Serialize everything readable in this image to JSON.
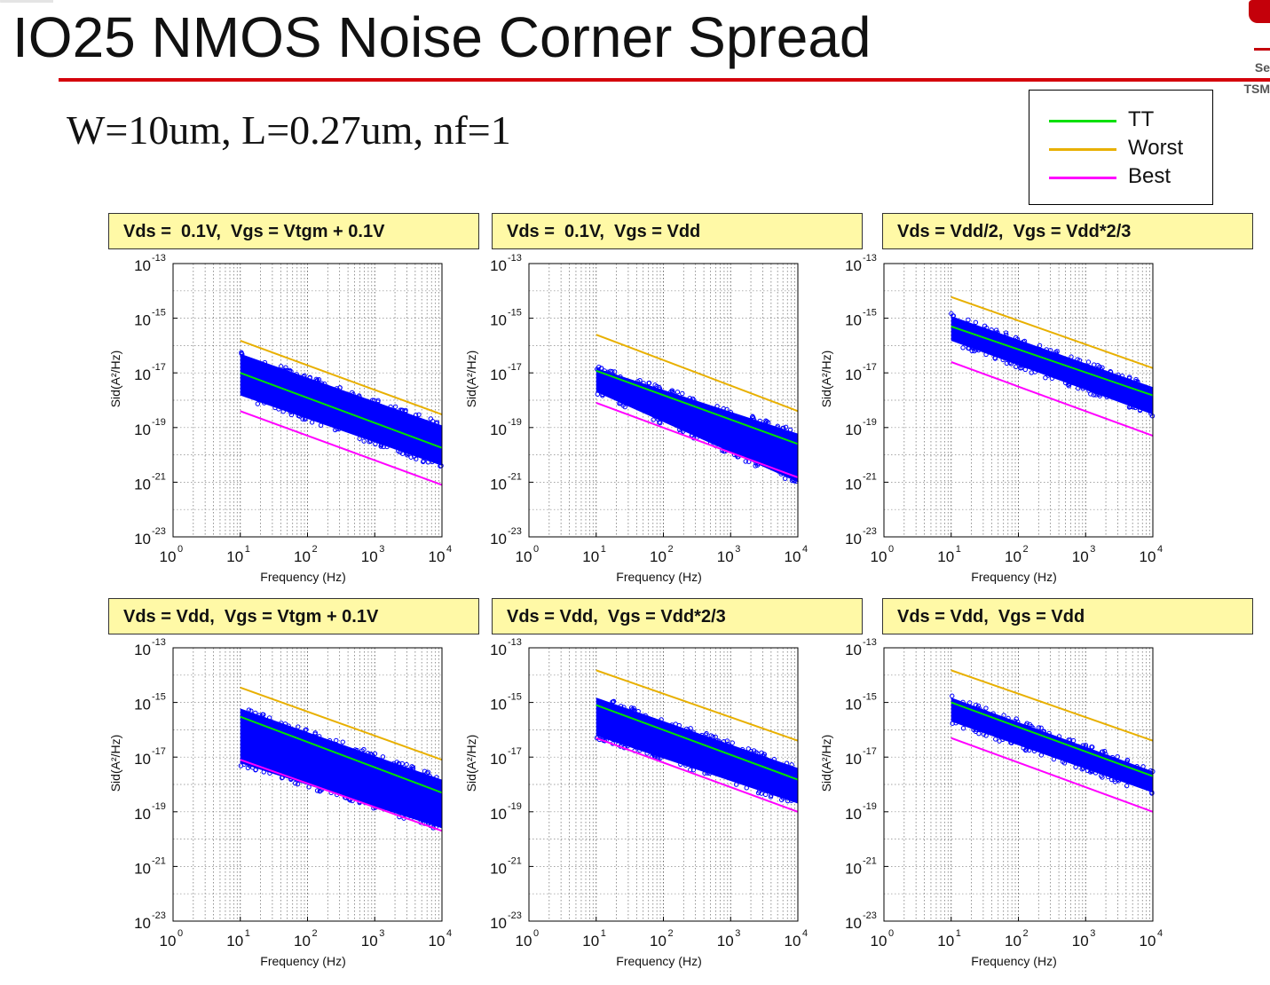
{
  "slide": {
    "title": "IO25 NMOS Noise Corner Spread",
    "subtitle": "W=10um, L=0.27um, nf=1",
    "logo_text_line1": "Se",
    "logo_text_line2": "TSM"
  },
  "legend": {
    "items": [
      {
        "label": "TT",
        "color": "#00e000"
      },
      {
        "label": "Worst",
        "color": "#e8b000"
      },
      {
        "label": "Best",
        "color": "#ff00ff"
      }
    ]
  },
  "colors": {
    "scatter": "#0000ff",
    "header_bg": "#fff9a6",
    "title_rule": "#d4000b"
  },
  "chart_data": [
    {
      "type": "scatter",
      "title": "Vds =  0.1V,  Vgs = Vtgm + 0.1V",
      "xlabel": "Frequency (Hz)",
      "ylabel": "Sid(A²/Hz)",
      "xscale": "log",
      "yscale": "log",
      "xlim": [
        1,
        10000
      ],
      "ylim": [
        1e-23,
        1e-13
      ],
      "xticks": [
        "10^0",
        "10^1",
        "10^2",
        "10^3",
        "10^4"
      ],
      "yticks": [
        "10^-13",
        "10^-15",
        "10^-17",
        "10^-19",
        "10^-21",
        "10^-23"
      ],
      "grid": true,
      "series": [
        {
          "name": "TT",
          "x": [
            10,
            10000
          ],
          "y": [
            1e-17,
            1.8e-20
          ]
        },
        {
          "name": "Worst",
          "x": [
            10,
            10000
          ],
          "y": [
            1.5e-16,
            3e-19
          ]
        },
        {
          "name": "Best",
          "x": [
            10,
            10000
          ],
          "y": [
            4e-19,
            8e-22
          ]
        }
      ],
      "scatter_band": {
        "x": [
          10,
          10000
        ],
        "y_top": [
          5e-17,
          1.2e-19
        ],
        "y_bottom": [
          1.5e-18,
          4e-21
        ]
      }
    },
    {
      "type": "scatter",
      "title": "Vds =  0.1V,  Vgs = Vdd",
      "xlabel": "Frequency (Hz)",
      "ylabel": "Sid(A²/Hz)",
      "xscale": "log",
      "yscale": "log",
      "xlim": [
        1,
        10000
      ],
      "ylim": [
        1e-23,
        1e-13
      ],
      "xticks": [
        "10^0",
        "10^1",
        "10^2",
        "10^3",
        "10^4"
      ],
      "yticks": [
        "10^-13",
        "10^-15",
        "10^-17",
        "10^-19",
        "10^-21",
        "10^-23"
      ],
      "grid": true,
      "series": [
        {
          "name": "TT",
          "x": [
            10,
            10000
          ],
          "y": [
            1.2e-17,
            2.5e-20
          ]
        },
        {
          "name": "Worst",
          "x": [
            10,
            10000
          ],
          "y": [
            2.5e-16,
            4e-19
          ]
        },
        {
          "name": "Best",
          "x": [
            10,
            10000
          ],
          "y": [
            8e-19,
            1.5e-21
          ]
        }
      ],
      "scatter_band": {
        "x": [
          10,
          10000
        ],
        "y_top": [
          1.5e-17,
          6e-20
        ],
        "y_bottom": [
          2e-18,
          1e-21
        ]
      }
    },
    {
      "type": "scatter",
      "title": "Vds = Vdd/2,  Vgs = Vdd*2/3",
      "xlabel": "Frequency (Hz)",
      "ylabel": "Sid(A²/Hz)",
      "xscale": "log",
      "yscale": "log",
      "xlim": [
        1,
        10000
      ],
      "ylim": [
        1e-23,
        1e-13
      ],
      "xticks": [
        "10^0",
        "10^1",
        "10^2",
        "10^3",
        "10^4"
      ],
      "yticks": [
        "10^-13",
        "10^-15",
        "10^-17",
        "10^-19",
        "10^-21",
        "10^-23"
      ],
      "grid": true,
      "series": [
        {
          "name": "TT",
          "x": [
            10,
            10000
          ],
          "y": [
            5e-16,
            1.5e-18
          ]
        },
        {
          "name": "Worst",
          "x": [
            10,
            10000
          ],
          "y": [
            6e-15,
            1.5e-17
          ]
        },
        {
          "name": "Best",
          "x": [
            10,
            10000
          ],
          "y": [
            2.5e-17,
            5e-20
          ]
        }
      ],
      "scatter_band": {
        "x": [
          10,
          10000
        ],
        "y_top": [
          1.2e-15,
          3e-18
        ],
        "y_bottom": [
          1.5e-16,
          3e-19
        ]
      }
    },
    {
      "type": "scatter",
      "title": "Vds = Vdd,  Vgs = Vtgm + 0.1V",
      "xlabel": "Frequency (Hz)",
      "ylabel": "Sid(A²/Hz)",
      "xscale": "log",
      "yscale": "log",
      "xlim": [
        1,
        10000
      ],
      "ylim": [
        1e-23,
        1e-13
      ],
      "xticks": [
        "10^0",
        "10^1",
        "10^2",
        "10^3",
        "10^4"
      ],
      "yticks": [
        "10^-13",
        "10^-15",
        "10^-17",
        "10^-19",
        "10^-21",
        "10^-23"
      ],
      "grid": true,
      "series": [
        {
          "name": "TT",
          "x": [
            10,
            10000
          ],
          "y": [
            3e-16,
            5e-19
          ]
        },
        {
          "name": "Worst",
          "x": [
            10,
            10000
          ],
          "y": [
            3.5e-15,
            8e-18
          ]
        },
        {
          "name": "Best",
          "x": [
            10,
            10000
          ],
          "y": [
            8e-18,
            2e-20
          ]
        }
      ],
      "scatter_band": {
        "x": [
          10,
          10000
        ],
        "y_top": [
          6e-16,
          1.5e-18
        ],
        "y_bottom": [
          6e-18,
          2.5e-20
        ]
      }
    },
    {
      "type": "scatter",
      "title": "Vds = Vdd,  Vgs = Vdd*2/3",
      "xlabel": "Frequency (Hz)",
      "ylabel": "Sid(A²/Hz)",
      "xscale": "log",
      "yscale": "log",
      "xlim": [
        1,
        10000
      ],
      "ylim": [
        1e-23,
        1e-13
      ],
      "xticks": [
        "10^0",
        "10^1",
        "10^2",
        "10^3",
        "10^4"
      ],
      "yticks": [
        "10^-13",
        "10^-15",
        "10^-17",
        "10^-19",
        "10^-21",
        "10^-23"
      ],
      "grid": true,
      "series": [
        {
          "name": "TT",
          "x": [
            10,
            10000
          ],
          "y": [
            8e-16,
            1.5e-18
          ]
        },
        {
          "name": "Worst",
          "x": [
            10,
            10000
          ],
          "y": [
            1.5e-14,
            4e-17
          ]
        },
        {
          "name": "Best",
          "x": [
            10,
            10000
          ],
          "y": [
            5e-17,
            1e-19
          ]
        }
      ],
      "scatter_band": {
        "x": [
          10,
          10000
        ],
        "y_top": [
          1.5e-15,
          4e-18
        ],
        "y_bottom": [
          6e-17,
          2e-19
        ]
      }
    },
    {
      "type": "scatter",
      "title": "Vds = Vdd,  Vgs = Vdd",
      "xlabel": "Frequency (Hz)",
      "ylabel": "Sid(A²/Hz)",
      "xscale": "log",
      "yscale": "log",
      "xlim": [
        1,
        10000
      ],
      "ylim": [
        1e-23,
        1e-13
      ],
      "xticks": [
        "10^0",
        "10^1",
        "10^2",
        "10^3",
        "10^4"
      ],
      "yticks": [
        "10^-13",
        "10^-15",
        "10^-17",
        "10^-19",
        "10^-21",
        "10^-23"
      ],
      "grid": true,
      "series": [
        {
          "name": "TT",
          "x": [
            10,
            10000
          ],
          "y": [
            1e-15,
            2e-18
          ]
        },
        {
          "name": "Worst",
          "x": [
            10,
            10000
          ],
          "y": [
            1.5e-14,
            4e-17
          ]
        },
        {
          "name": "Best",
          "x": [
            10,
            10000
          ],
          "y": [
            5e-17,
            1e-19
          ]
        }
      ],
      "scatter_band": {
        "x": [
          10,
          10000
        ],
        "y_top": [
          1.5e-15,
          3e-18
        ],
        "y_bottom": [
          2e-16,
          5e-19
        ]
      }
    }
  ]
}
